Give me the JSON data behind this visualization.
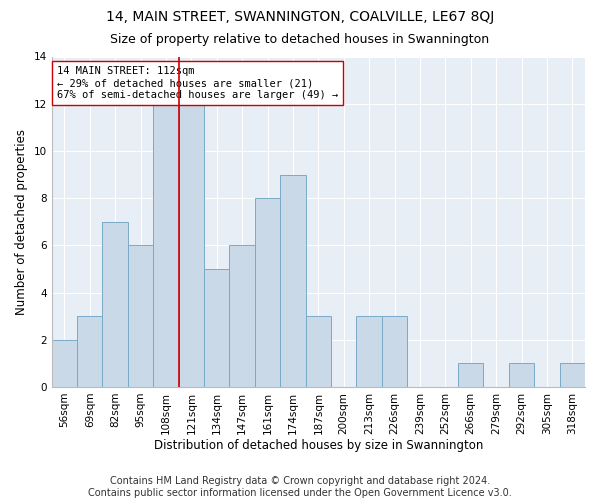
{
  "title": "14, MAIN STREET, SWANNINGTON, COALVILLE, LE67 8QJ",
  "subtitle": "Size of property relative to detached houses in Swannington",
  "xlabel": "Distribution of detached houses by size in Swannington",
  "ylabel": "Number of detached properties",
  "categories": [
    "56sqm",
    "69sqm",
    "82sqm",
    "95sqm",
    "108sqm",
    "121sqm",
    "134sqm",
    "147sqm",
    "161sqm",
    "174sqm",
    "187sqm",
    "200sqm",
    "213sqm",
    "226sqm",
    "239sqm",
    "252sqm",
    "266sqm",
    "279sqm",
    "292sqm",
    "305sqm",
    "318sqm"
  ],
  "values": [
    2,
    3,
    7,
    6,
    12,
    12,
    5,
    6,
    8,
    9,
    3,
    0,
    3,
    3,
    0,
    0,
    1,
    0,
    1,
    0,
    1
  ],
  "bar_color": "#c9d9e8",
  "bar_edge_color": "#7aaac8",
  "vline_x": 4.5,
  "vline_color": "#cc0000",
  "annotation_text": "14 MAIN STREET: 112sqm\n← 29% of detached houses are smaller (21)\n67% of semi-detached houses are larger (49) →",
  "annotation_box_color": "#ffffff",
  "annotation_box_edge": "#cc0000",
  "ylim": [
    0,
    14
  ],
  "yticks": [
    0,
    2,
    4,
    6,
    8,
    10,
    12,
    14
  ],
  "footer": "Contains HM Land Registry data © Crown copyright and database right 2024.\nContains public sector information licensed under the Open Government Licence v3.0.",
  "plot_bg_color": "#e8eef5",
  "title_fontsize": 10,
  "subtitle_fontsize": 9,
  "xlabel_fontsize": 8.5,
  "ylabel_fontsize": 8.5,
  "tick_fontsize": 7.5,
  "annotation_fontsize": 7.5,
  "footer_fontsize": 7
}
